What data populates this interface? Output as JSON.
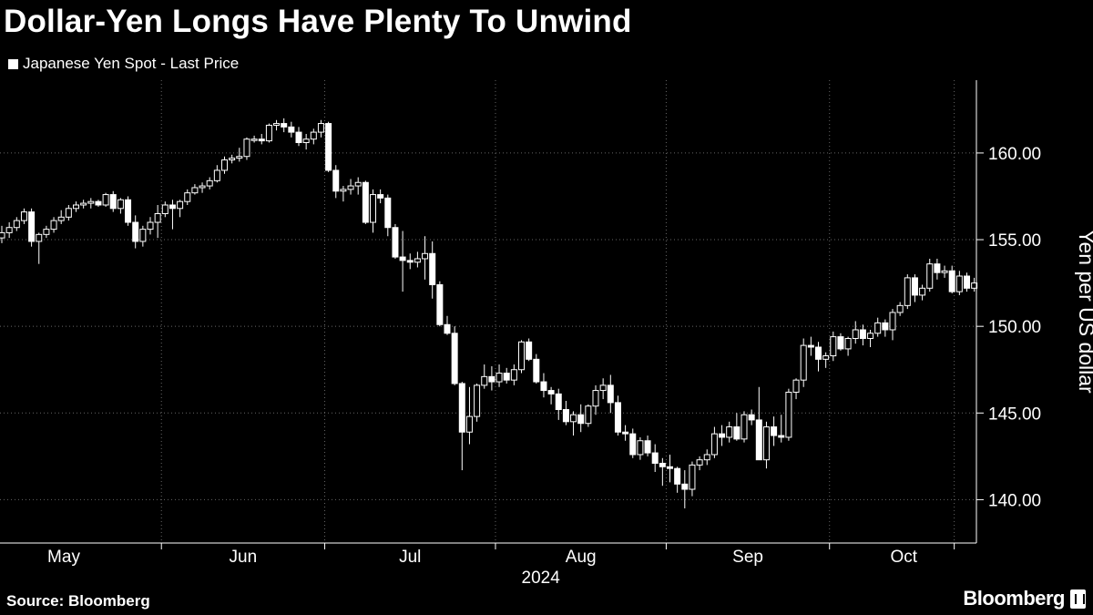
{
  "title": "Dollar-Yen Longs Have Plenty To Unwind",
  "legend": {
    "label": "Japanese Yen Spot - Last Price",
    "color": "#ffffff"
  },
  "source": "Source: Bloomberg",
  "brand": "Bloomberg",
  "chart_data": {
    "type": "candlestick",
    "title": "Dollar-Yen Longs Have Plenty To Unwind",
    "ylabel": "Yen per US dollar",
    "xlabel": "2024",
    "ylim": [
      137.5,
      164.2
    ],
    "yticks": [
      140,
      145,
      150,
      155,
      160
    ],
    "ytick_labels": [
      "140.00",
      "145.00",
      "150.00",
      "155.00",
      "160.00"
    ],
    "x_months": [
      "May",
      "Jun",
      "Jul",
      "Aug",
      "Sep",
      "Oct"
    ],
    "x_month_start_index": [
      0,
      22,
      44,
      67,
      90,
      112
    ],
    "x_year_label": "2024",
    "x_year_under_month": "Aug",
    "grid": true,
    "colors": {
      "up": "#ffffff",
      "down": "#ffffff",
      "background": "#000000",
      "grid": "#666666"
    },
    "series": [
      {
        "name": "Japanese Yen Spot - Last Price",
        "columns": [
          "open",
          "high",
          "low",
          "close"
        ],
        "values": [
          [
            155.1,
            155.8,
            154.8,
            155.4
          ],
          [
            155.4,
            156.0,
            155.1,
            155.7
          ],
          [
            155.7,
            156.3,
            155.5,
            156.1
          ],
          [
            156.1,
            156.8,
            155.9,
            156.6
          ],
          [
            156.6,
            156.8,
            154.6,
            154.9
          ],
          [
            154.9,
            155.4,
            153.6,
            155.3
          ],
          [
            155.3,
            155.8,
            155.1,
            155.6
          ],
          [
            155.6,
            156.3,
            155.4,
            156.1
          ],
          [
            156.1,
            156.7,
            155.9,
            156.3
          ],
          [
            156.3,
            157.0,
            156.1,
            156.8
          ],
          [
            156.8,
            157.2,
            156.6,
            157.0
          ],
          [
            157.0,
            157.3,
            156.8,
            157.1
          ],
          [
            157.1,
            157.4,
            156.8,
            157.2
          ],
          [
            157.2,
            157.3,
            156.9,
            157.0
          ],
          [
            157.0,
            157.7,
            156.9,
            157.6
          ],
          [
            157.6,
            157.8,
            156.6,
            156.8
          ],
          [
            156.8,
            157.4,
            156.5,
            157.3
          ],
          [
            157.3,
            157.5,
            155.8,
            156.0
          ],
          [
            156.0,
            156.4,
            154.5,
            154.9
          ],
          [
            154.9,
            155.8,
            154.6,
            155.6
          ],
          [
            155.6,
            156.3,
            155.3,
            156.0
          ],
          [
            156.0,
            157.0,
            155.1,
            156.5
          ],
          [
            156.5,
            157.2,
            156.3,
            157.0
          ],
          [
            157.0,
            157.3,
            155.6,
            156.8
          ],
          [
            156.8,
            157.3,
            156.3,
            157.2
          ],
          [
            157.2,
            157.9,
            157.0,
            157.7
          ],
          [
            157.7,
            158.2,
            157.6,
            158.0
          ],
          [
            158.0,
            158.3,
            157.7,
            158.1
          ],
          [
            158.1,
            158.6,
            157.9,
            158.4
          ],
          [
            158.4,
            159.3,
            158.3,
            159.0
          ],
          [
            159.0,
            159.8,
            158.8,
            159.6
          ],
          [
            159.6,
            159.9,
            159.4,
            159.7
          ],
          [
            159.7,
            160.3,
            159.5,
            159.8
          ],
          [
            159.8,
            160.9,
            159.6,
            160.8
          ],
          [
            160.8,
            161.0,
            160.6,
            160.8
          ],
          [
            160.8,
            161.1,
            160.5,
            160.7
          ],
          [
            160.7,
            161.7,
            160.6,
            161.6
          ],
          [
            161.6,
            161.9,
            161.3,
            161.7
          ],
          [
            161.7,
            162.0,
            161.2,
            161.5
          ],
          [
            161.5,
            161.8,
            160.9,
            161.2
          ],
          [
            161.2,
            161.5,
            160.4,
            160.6
          ],
          [
            160.6,
            161.1,
            160.2,
            160.8
          ],
          [
            160.8,
            161.4,
            160.5,
            161.2
          ],
          [
            161.2,
            161.9,
            160.9,
            161.7
          ],
          [
            161.7,
            161.8,
            158.9,
            159.0
          ],
          [
            159.0,
            159.3,
            157.4,
            157.8
          ],
          [
            157.8,
            158.1,
            157.2,
            157.9
          ],
          [
            157.9,
            158.5,
            157.6,
            158.1
          ],
          [
            158.1,
            158.6,
            157.6,
            158.3
          ],
          [
            158.3,
            158.4,
            155.9,
            156.0
          ],
          [
            156.0,
            157.9,
            155.4,
            157.6
          ],
          [
            157.6,
            157.9,
            157.1,
            157.4
          ],
          [
            157.4,
            157.6,
            155.2,
            155.7
          ],
          [
            155.7,
            155.9,
            153.9,
            154.0
          ],
          [
            154.0,
            155.5,
            152.0,
            153.8
          ],
          [
            153.8,
            154.2,
            153.3,
            153.7
          ],
          [
            153.7,
            154.3,
            153.4,
            153.9
          ],
          [
            153.9,
            155.2,
            152.7,
            154.2
          ],
          [
            154.2,
            154.9,
            151.6,
            152.4
          ],
          [
            152.4,
            152.6,
            150.0,
            150.1
          ],
          [
            150.1,
            150.6,
            149.5,
            149.6
          ],
          [
            149.6,
            150.0,
            146.6,
            146.7
          ],
          [
            146.7,
            146.8,
            141.7,
            143.9
          ],
          [
            143.9,
            146.5,
            143.2,
            144.8
          ],
          [
            144.8,
            146.7,
            144.5,
            146.6
          ],
          [
            146.6,
            147.8,
            146.4,
            147.1
          ],
          [
            147.1,
            147.7,
            146.3,
            146.8
          ],
          [
            146.8,
            147.8,
            146.5,
            147.3
          ],
          [
            147.3,
            147.6,
            146.7,
            146.9
          ],
          [
            146.9,
            147.8,
            146.6,
            147.5
          ],
          [
            147.5,
            149.2,
            147.3,
            149.1
          ],
          [
            149.1,
            149.3,
            148.0,
            148.1
          ],
          [
            148.1,
            148.4,
            146.7,
            146.8
          ],
          [
            146.8,
            147.3,
            145.9,
            146.3
          ],
          [
            146.3,
            146.5,
            145.5,
            146.1
          ],
          [
            146.1,
            146.4,
            144.6,
            145.2
          ],
          [
            145.2,
            145.7,
            144.3,
            144.5
          ],
          [
            144.5,
            145.1,
            143.7,
            144.9
          ],
          [
            144.9,
            145.5,
            143.9,
            144.4
          ],
          [
            144.4,
            145.5,
            144.2,
            145.4
          ],
          [
            145.4,
            146.6,
            144.9,
            146.3
          ],
          [
            146.3,
            147.0,
            145.8,
            146.6
          ],
          [
            146.6,
            147.2,
            145.0,
            145.6
          ],
          [
            145.6,
            146.0,
            143.7,
            143.9
          ],
          [
            143.9,
            144.3,
            143.4,
            143.8
          ],
          [
            143.8,
            144.1,
            142.4,
            142.6
          ],
          [
            142.6,
            143.6,
            142.3,
            143.4
          ],
          [
            143.4,
            143.7,
            142.5,
            142.7
          ],
          [
            142.7,
            143.2,
            141.6,
            142.1
          ],
          [
            142.1,
            142.4,
            140.8,
            141.9
          ],
          [
            141.9,
            142.6,
            141.0,
            141.8
          ],
          [
            141.8,
            141.9,
            140.4,
            140.9
          ],
          [
            140.9,
            141.7,
            139.5,
            140.6
          ],
          [
            140.6,
            142.2,
            140.2,
            142.0
          ],
          [
            142.0,
            142.5,
            141.7,
            142.3
          ],
          [
            142.3,
            142.9,
            142.0,
            142.6
          ],
          [
            142.6,
            144.2,
            142.4,
            143.8
          ],
          [
            143.8,
            144.3,
            143.1,
            143.6
          ],
          [
            143.6,
            144.5,
            143.3,
            144.2
          ],
          [
            144.2,
            145.0,
            143.4,
            143.5
          ],
          [
            143.5,
            145.1,
            143.3,
            144.9
          ],
          [
            144.9,
            145.2,
            144.3,
            144.6
          ],
          [
            144.6,
            146.5,
            142.9,
            142.3
          ],
          [
            142.3,
            144.5,
            141.8,
            144.2
          ],
          [
            144.2,
            144.8,
            143.1,
            143.7
          ],
          [
            143.7,
            144.9,
            143.3,
            143.6
          ],
          [
            143.6,
            146.4,
            143.4,
            146.2
          ],
          [
            146.2,
            147.0,
            145.8,
            146.9
          ],
          [
            146.9,
            149.3,
            146.5,
            148.9
          ],
          [
            148.9,
            149.4,
            148.3,
            148.8
          ],
          [
            148.8,
            149.1,
            147.4,
            148.1
          ],
          [
            148.1,
            148.5,
            147.6,
            148.3
          ],
          [
            148.3,
            149.7,
            148.0,
            149.4
          ],
          [
            149.4,
            149.6,
            148.6,
            148.7
          ],
          [
            148.7,
            149.4,
            148.3,
            149.3
          ],
          [
            149.3,
            150.3,
            149.0,
            149.8
          ],
          [
            149.8,
            150.1,
            148.9,
            149.3
          ],
          [
            149.3,
            149.8,
            148.8,
            149.6
          ],
          [
            149.6,
            150.5,
            149.4,
            150.2
          ],
          [
            150.2,
            150.4,
            149.4,
            149.8
          ],
          [
            149.8,
            151.0,
            149.2,
            150.8
          ],
          [
            150.8,
            151.4,
            150.6,
            151.2
          ],
          [
            151.2,
            153.0,
            151.0,
            152.8
          ],
          [
            152.8,
            153.0,
            151.4,
            151.8
          ],
          [
            151.8,
            152.4,
            151.5,
            152.2
          ],
          [
            152.2,
            153.9,
            152.0,
            153.6
          ],
          [
            153.6,
            153.9,
            152.7,
            153.1
          ],
          [
            153.1,
            153.5,
            152.8,
            153.2
          ],
          [
            153.2,
            153.5,
            151.9,
            152.0
          ],
          [
            152.0,
            153.2,
            151.8,
            152.9
          ],
          [
            152.9,
            153.1,
            152.0,
            152.2
          ],
          [
            152.2,
            152.8,
            152.0,
            152.5
          ]
        ]
      }
    ]
  }
}
